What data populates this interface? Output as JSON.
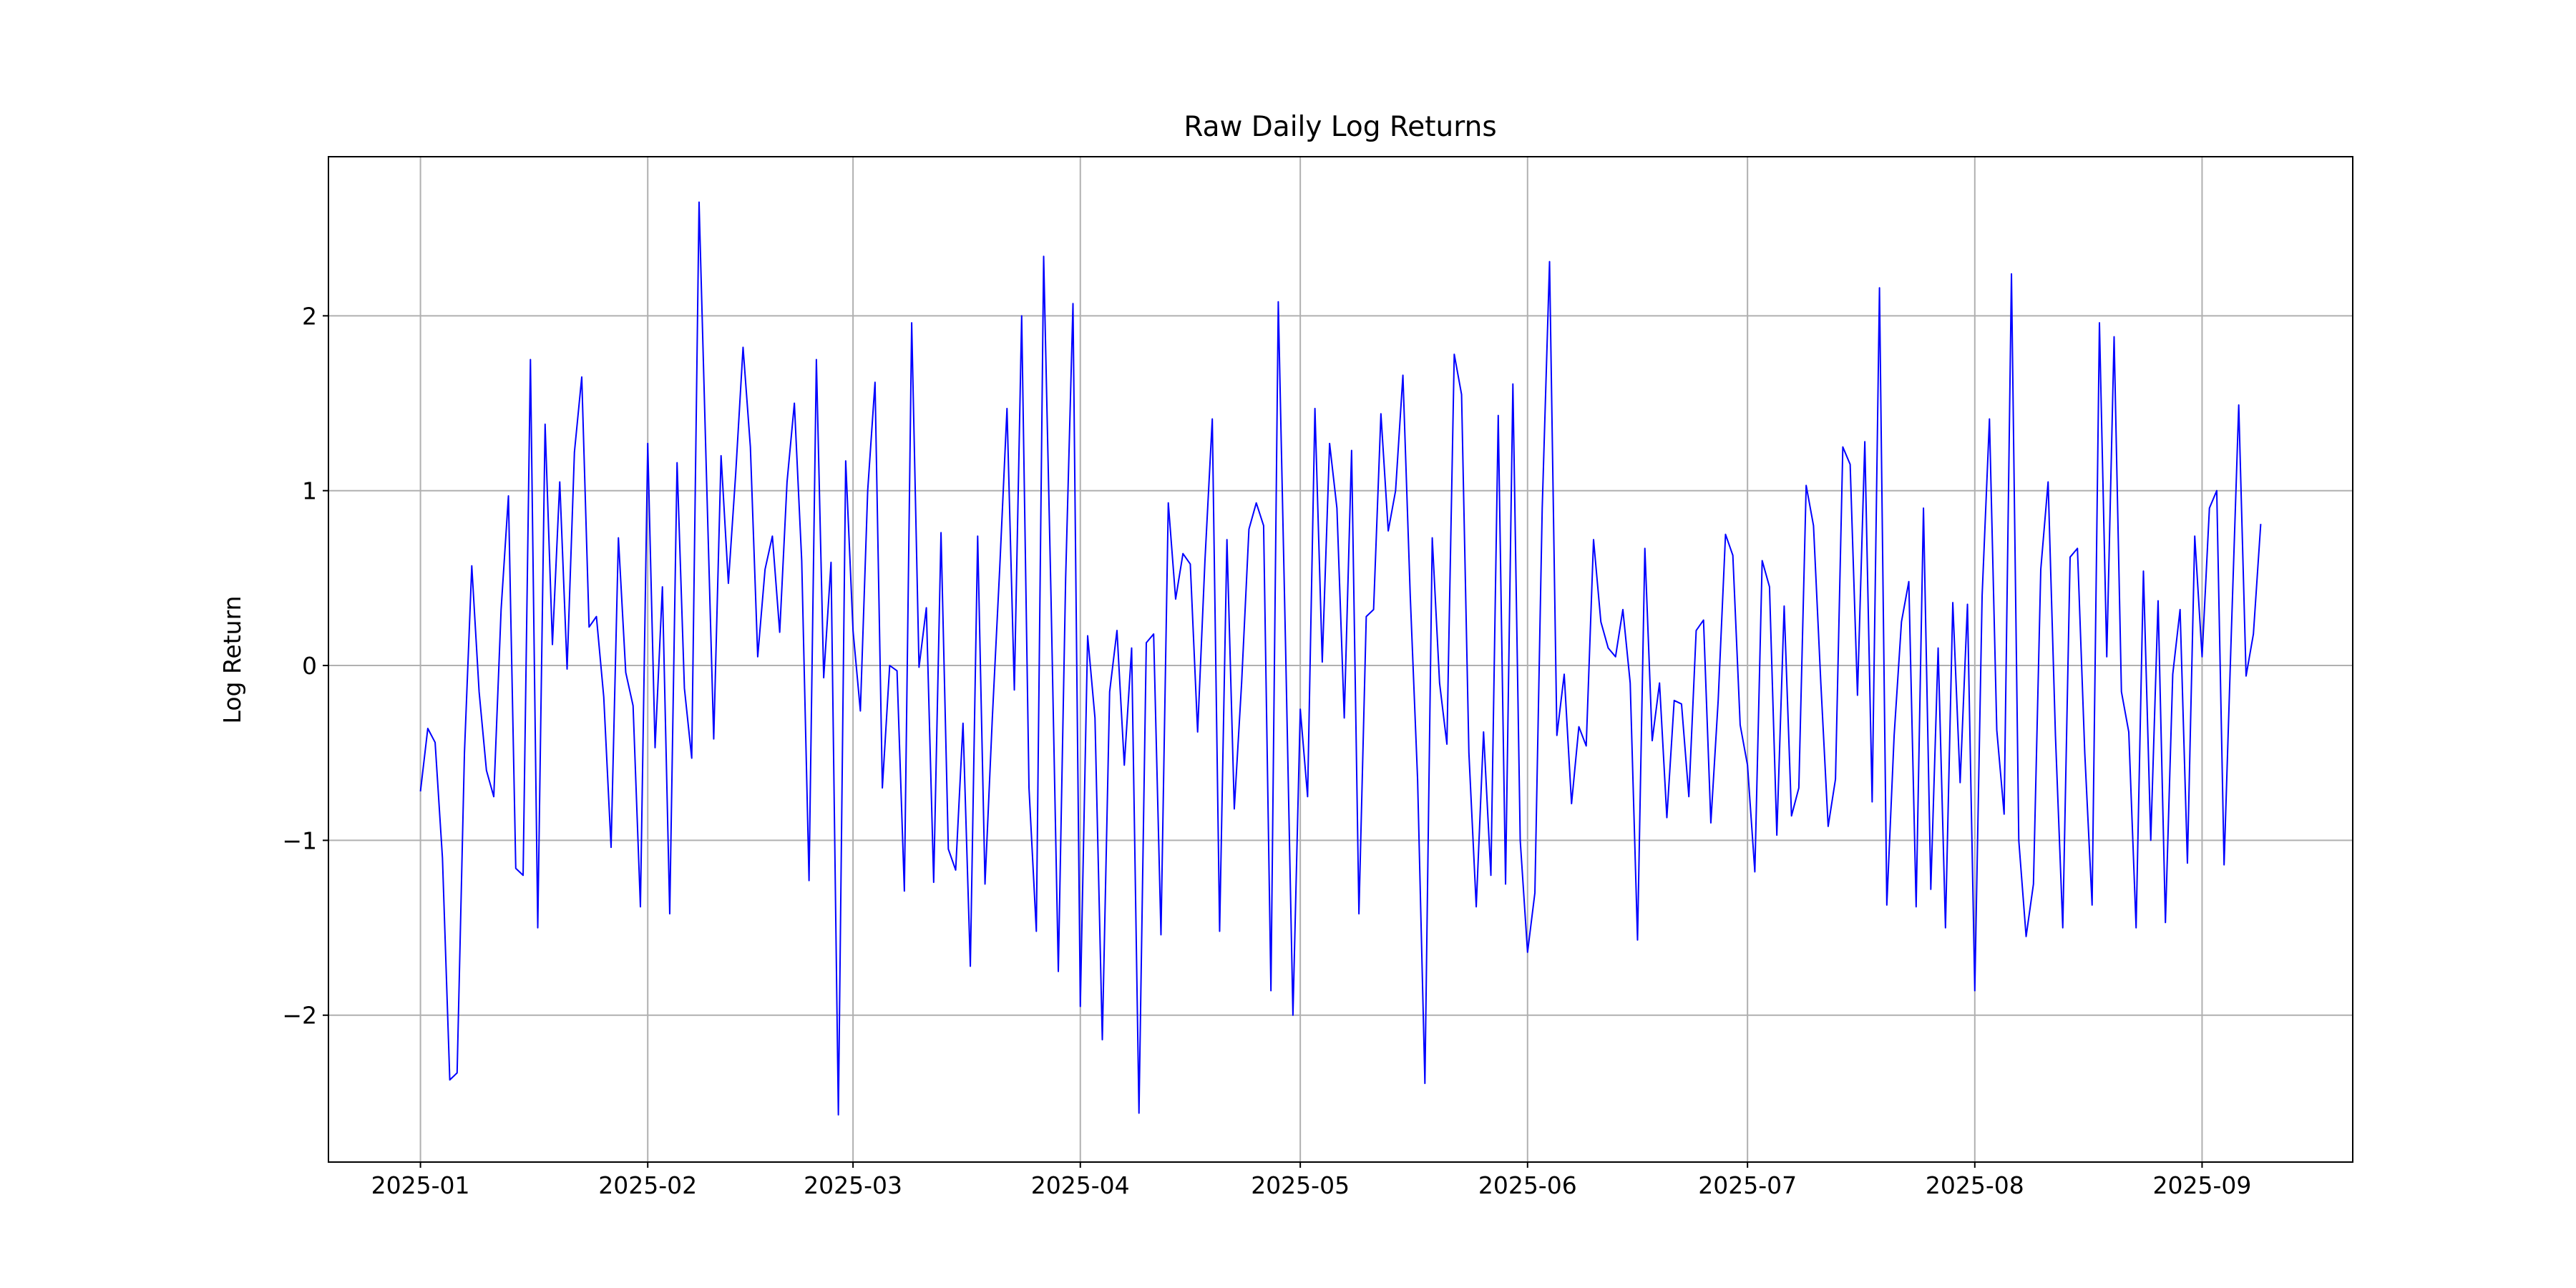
{
  "chart_data": {
    "type": "line",
    "title": "Raw Daily Log Returns",
    "ylabel": "Log Return",
    "series": [
      {
        "color": "#0000ff",
        "values": [
          -0.72,
          -0.36,
          -0.44,
          -1.1,
          -2.37,
          -2.33,
          -0.5,
          0.57,
          -0.15,
          -0.6,
          -0.75,
          0.32,
          0.97,
          -1.16,
          -1.2,
          1.75,
          -1.5,
          1.38,
          0.12,
          1.05,
          -0.02,
          1.22,
          1.65,
          0.22,
          0.28,
          -0.18,
          -1.04,
          0.73,
          -0.04,
          -0.23,
          -1.38,
          1.27,
          -0.47,
          0.45,
          -1.42,
          1.16,
          -0.13,
          -0.53,
          2.65,
          1.1,
          -0.42,
          1.2,
          0.47,
          1.1,
          1.82,
          1.25,
          0.05,
          0.55,
          0.74,
          0.19,
          1.05,
          1.5,
          0.6,
          -1.23,
          1.75,
          -0.07,
          0.59,
          -2.57,
          1.17,
          0.2,
          -0.26,
          1.0,
          1.62,
          -0.7,
          0.0,
          -0.03,
          -1.29,
          1.96,
          -0.01,
          0.33,
          -1.24,
          0.76,
          -1.05,
          -1.17,
          -0.33,
          -1.72,
          0.74,
          -1.25,
          -0.3,
          0.55,
          1.47,
          -0.14,
          2.0,
          -0.7,
          -1.52,
          2.34,
          0.4,
          -1.75,
          0.5,
          2.07,
          -1.95,
          0.17,
          -0.3,
          -2.14,
          -0.15,
          0.2,
          -0.57,
          0.1,
          -2.56,
          0.13,
          0.18,
          -1.54,
          0.93,
          0.38,
          0.64,
          0.58,
          -0.38,
          0.6,
          1.41,
          -1.52,
          0.72,
          -0.82,
          -0.1,
          0.78,
          0.93,
          0.8,
          -1.86,
          2.08,
          0.1,
          -2.0,
          -0.25,
          -0.75,
          1.47,
          0.02,
          1.27,
          0.9,
          -0.3,
          1.23,
          -1.42,
          0.28,
          0.32,
          1.44,
          0.77,
          1.0,
          1.66,
          0.4,
          -0.65,
          -2.39,
          0.73,
          -0.1,
          -0.45,
          1.78,
          1.55,
          -0.5,
          -1.38,
          -0.38,
          -1.2,
          1.43,
          -1.25,
          1.61,
          -1.0,
          -1.64,
          -1.3,
          0.9,
          2.31,
          -0.4,
          -0.05,
          -0.79,
          -0.35,
          -0.46,
          0.72,
          0.25,
          0.1,
          0.05,
          0.32,
          -0.1,
          -1.57,
          0.67,
          -0.43,
          -0.1,
          -0.87,
          -0.2,
          -0.22,
          -0.75,
          0.2,
          0.26,
          -0.9,
          -0.2,
          0.75,
          0.63,
          -0.34,
          -0.57,
          -1.18,
          0.6,
          0.45,
          -0.97,
          0.34,
          -0.86,
          -0.7,
          1.03,
          0.8,
          -0.1,
          -0.92,
          -0.65,
          1.25,
          1.15,
          -0.17,
          1.28,
          -0.78,
          2.16,
          -1.37,
          -0.4,
          0.25,
          0.48,
          -1.38,
          0.9,
          -1.28,
          0.1,
          -1.5,
          0.36,
          -0.67,
          0.35,
          -1.86,
          0.4,
          1.41,
          -0.37,
          -0.85,
          2.24,
          -1.0,
          -1.55,
          -1.25,
          0.55,
          1.05,
          -0.4,
          -1.5,
          0.62,
          0.67,
          -0.5,
          -1.37,
          1.96,
          0.05,
          1.88,
          -0.15,
          -0.38,
          -1.5,
          0.54,
          -1.0,
          0.37,
          -1.47,
          -0.05,
          0.32,
          -1.13,
          0.74,
          0.05,
          0.9,
          1.0,
          -1.14,
          0.2,
          1.49,
          -0.06,
          0.18,
          0.81
        ]
      }
    ],
    "xlim": [
      -12.55,
      263.55
    ],
    "xticks": [
      {
        "value": 0,
        "label": "2025-01"
      },
      {
        "value": 31,
        "label": "2025-02"
      },
      {
        "value": 59,
        "label": "2025-03"
      },
      {
        "value": 90,
        "label": "2025-04"
      },
      {
        "value": 120,
        "label": "2025-05"
      },
      {
        "value": 151,
        "label": "2025-06"
      },
      {
        "value": 181,
        "label": "2025-07"
      },
      {
        "value": 212,
        "label": "2025-08"
      },
      {
        "value": 243,
        "label": "2025-09"
      }
    ],
    "ylim": [
      -2.84,
      2.91
    ],
    "yticks": [
      {
        "value": -2,
        "label": "−2"
      },
      {
        "value": -1,
        "label": "−1"
      },
      0,
      1,
      2
    ],
    "grid": true
  }
}
